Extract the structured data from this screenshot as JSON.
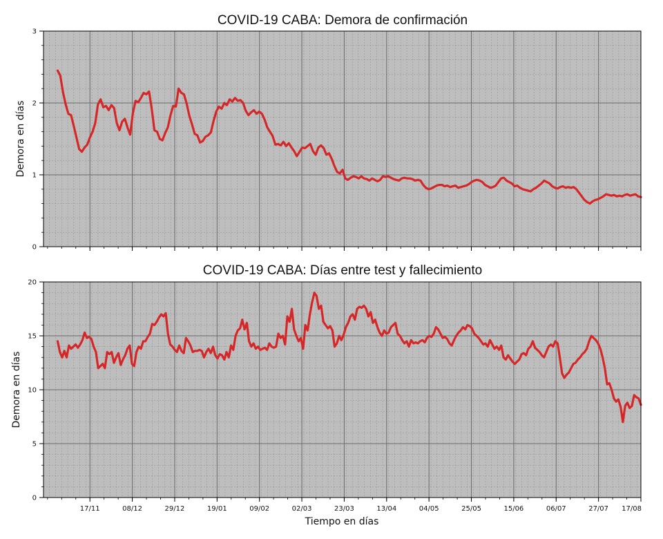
{
  "chart_data": [
    {
      "type": "line",
      "title": "COVID-19 CABA: Demora de confirmación",
      "xlabel": "",
      "ylabel": "Demora en días",
      "xlim": [
        "2020-10-25",
        "2021-08-17"
      ],
      "ylim": [
        0,
        3
      ],
      "yticks": [
        0,
        1,
        2,
        3
      ],
      "xtick_dates": [
        "2020-11-17",
        "2020-12-08",
        "2020-12-29",
        "2021-01-19",
        "2021-02-09",
        "2021-03-02",
        "2021-03-23",
        "2021-04-13",
        "2021-05-04",
        "2021-05-25",
        "2021-06-15",
        "2021-07-06",
        "2021-07-27",
        "2021-08-17"
      ],
      "xtick_labels": [
        "17/11",
        "08/12",
        "29/12",
        "19/01",
        "09/02",
        "02/03",
        "23/03",
        "13/04",
        "04/05",
        "25/05",
        "15/06",
        "06/07",
        "27/07",
        "17/08"
      ],
      "x_start": "2020-11-01",
      "x_end": "2021-08-17",
      "y_values": [
        2.45,
        2.38,
        2.15,
        1.98,
        1.85,
        1.83,
        1.68,
        1.52,
        1.36,
        1.32,
        1.38,
        1.42,
        1.52,
        1.6,
        1.72,
        1.98,
        2.05,
        1.94,
        1.96,
        1.9,
        1.97,
        1.93,
        1.72,
        1.62,
        1.74,
        1.78,
        1.66,
        1.56,
        1.86,
        2.03,
        2.01,
        2.07,
        2.14,
        2.12,
        2.16,
        1.92,
        1.62,
        1.6,
        1.5,
        1.48,
        1.58,
        1.66,
        1.83,
        1.96,
        1.95,
        2.2,
        2.14,
        2.12,
        1.99,
        1.82,
        1.7,
        1.57,
        1.55,
        1.45,
        1.47,
        1.53,
        1.55,
        1.59,
        1.75,
        1.88,
        1.95,
        1.92,
        2.0,
        1.97,
        2.05,
        2.02,
        2.07,
        2.03,
        2.04,
        2.0,
        1.89,
        1.83,
        1.87,
        1.9,
        1.85,
        1.88,
        1.85,
        1.77,
        1.66,
        1.6,
        1.54,
        1.42,
        1.43,
        1.41,
        1.46,
        1.4,
        1.44,
        1.38,
        1.33,
        1.26,
        1.32,
        1.38,
        1.37,
        1.4,
        1.43,
        1.33,
        1.28,
        1.38,
        1.41,
        1.37,
        1.28,
        1.3,
        1.22,
        1.12,
        1.04,
        1.02,
        1.07,
        0.95,
        0.93,
        0.96,
        0.98,
        0.97,
        0.95,
        0.98,
        0.95,
        0.94,
        0.92,
        0.95,
        0.93,
        0.91,
        0.93,
        0.98,
        0.97,
        0.98,
        0.96,
        0.94,
        0.93,
        0.92,
        0.95,
        0.96,
        0.95,
        0.95,
        0.94,
        0.92,
        0.93,
        0.92,
        0.86,
        0.82,
        0.8,
        0.81,
        0.83,
        0.85,
        0.86,
        0.86,
        0.84,
        0.85,
        0.83,
        0.84,
        0.85,
        0.82,
        0.83,
        0.84,
        0.85,
        0.87,
        0.9,
        0.92,
        0.93,
        0.92,
        0.9,
        0.86,
        0.84,
        0.82,
        0.83,
        0.85,
        0.9,
        0.95,
        0.96,
        0.92,
        0.9,
        0.88,
        0.84,
        0.85,
        0.82,
        0.8,
        0.79,
        0.78,
        0.77,
        0.8,
        0.82,
        0.85,
        0.88,
        0.92,
        0.9,
        0.88,
        0.84,
        0.82,
        0.81,
        0.83,
        0.84,
        0.82,
        0.83,
        0.82,
        0.83,
        0.8,
        0.75,
        0.7,
        0.65,
        0.62,
        0.6,
        0.63,
        0.65,
        0.66,
        0.68,
        0.7,
        0.73,
        0.72,
        0.71,
        0.72,
        0.7,
        0.71,
        0.7,
        0.72,
        0.73,
        0.71,
        0.72,
        0.73,
        0.7,
        0.69
      ]
    },
    {
      "type": "line",
      "title": "COVID-19 CABA: Días entre test y fallecimiento",
      "xlabel": "Tiempo en días",
      "ylabel": "Demora en días",
      "xlim": [
        "2020-10-25",
        "2021-08-17"
      ],
      "ylim": [
        0,
        20
      ],
      "yticks": [
        0,
        5,
        10,
        15,
        20
      ],
      "xtick_dates": [
        "2020-11-17",
        "2020-12-08",
        "2020-12-29",
        "2021-01-19",
        "2021-02-09",
        "2021-03-02",
        "2021-03-23",
        "2021-04-13",
        "2021-05-04",
        "2021-05-25",
        "2021-06-15",
        "2021-07-06",
        "2021-07-27",
        "2021-08-17"
      ],
      "xtick_labels": [
        "17/11",
        "08/12",
        "29/12",
        "19/01",
        "09/02",
        "02/03",
        "23/03",
        "13/04",
        "04/05",
        "25/05",
        "15/06",
        "06/07",
        "27/07",
        "17/08"
      ],
      "x_start": "2020-11-01",
      "x_end": "2021-08-17",
      "y_values": [
        14.5,
        13.5,
        13.0,
        13.6,
        13.0,
        14.1,
        13.8,
        14.0,
        14.2,
        13.9,
        14.2,
        14.6,
        15.3,
        14.8,
        14.9,
        14.7,
        14.0,
        13.5,
        12.0,
        12.2,
        12.4,
        12.0,
        13.5,
        13.3,
        13.5,
        12.5,
        13.0,
        13.4,
        12.3,
        12.8,
        13.2,
        13.8,
        14.1,
        12.4,
        12.2,
        13.5,
        14.0,
        13.8,
        14.5,
        14.5,
        14.9,
        15.2,
        16.1,
        16.0,
        16.3,
        16.7,
        17.0,
        16.8,
        17.1,
        15.2,
        14.2,
        14.0,
        13.7,
        13.5,
        14.1,
        13.6,
        13.4,
        14.8,
        14.5,
        14.1,
        13.5,
        13.6,
        13.6,
        13.7,
        13.6,
        13.0,
        13.5,
        13.8,
        13.4,
        14.0,
        13.2,
        12.9,
        13.3,
        13.2,
        12.8,
        13.5,
        13.0,
        14.1,
        13.7,
        15.0,
        15.5,
        15.7,
        16.5,
        15.6,
        16.2,
        14.5,
        14.0,
        14.3,
        13.8,
        14.0,
        13.7,
        13.8,
        13.9,
        13.7,
        14.3,
        14.0,
        13.9,
        14.0,
        15.2,
        14.8,
        15.0,
        14.2,
        16.8,
        16.3,
        17.5,
        15.6,
        15.0,
        14.5,
        14.8,
        13.8,
        16.0,
        15.5,
        17.0,
        18.1,
        19.0,
        18.7,
        17.5,
        17.8,
        16.3,
        16.0,
        15.7,
        15.9,
        15.5,
        14.0,
        14.3,
        15.0,
        14.6,
        15.1,
        15.8,
        16.2,
        16.8,
        17.0,
        16.5,
        17.5,
        17.7,
        17.6,
        17.8,
        17.5,
        16.8,
        17.2,
        16.2,
        16.5,
        15.8,
        15.3,
        15.0,
        15.5,
        15.2,
        15.3,
        15.8,
        16.0,
        16.2,
        15.2,
        15.0,
        14.6,
        14.3,
        14.5,
        14.0,
        14.6,
        14.3,
        14.4,
        14.3,
        14.5,
        14.6,
        14.4,
        14.8,
        15.0,
        14.9,
        15.2,
        15.8,
        15.6,
        15.2,
        14.8,
        14.9,
        14.7,
        14.3,
        14.1,
        14.6,
        15.0,
        15.3,
        15.5,
        15.8,
        15.6,
        16.0,
        15.9,
        15.7,
        15.2,
        15.0,
        14.8,
        14.5,
        14.2,
        14.3,
        14.0,
        14.6,
        14.2,
        13.8,
        14.0,
        13.7,
        14.1,
        13.0,
        12.8,
        13.2,
        12.9,
        12.6,
        12.4,
        12.6,
        12.8,
        13.3,
        13.4,
        13.2,
        13.8,
        14.0,
        14.5,
        13.9,
        13.7,
        13.5,
        13.2,
        13.0,
        13.5,
        14.0,
        14.2,
        14.0,
        14.5,
        14.3,
        13.0,
        11.5,
        11.1,
        11.4,
        11.6,
        12.0,
        12.4,
        12.5,
        12.8,
        13.0,
        13.3,
        13.5,
        13.8,
        14.5,
        15.0,
        14.8,
        14.6,
        14.3,
        13.8,
        13.0,
        12.0,
        10.5,
        10.6,
        10.0,
        9.2,
        8.9,
        9.1,
        8.4,
        7.0,
        8.5,
        8.8,
        8.3,
        8.5,
        9.5,
        9.3,
        9.2,
        8.6
      ]
    }
  ]
}
